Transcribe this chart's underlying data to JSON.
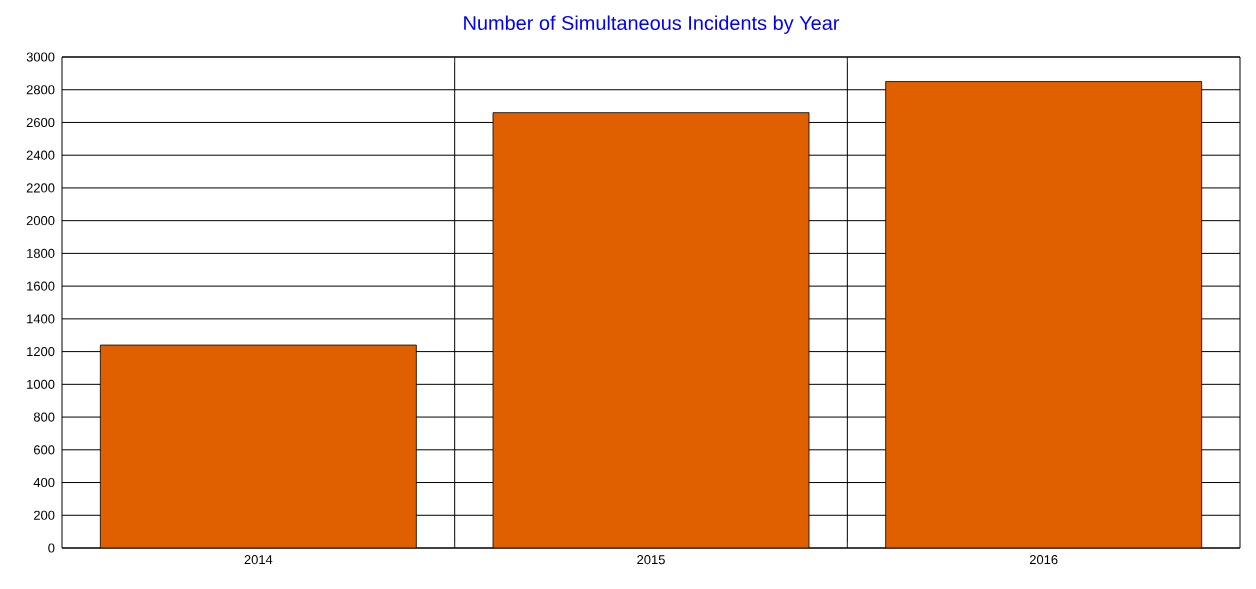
{
  "chart_data": {
    "type": "bar",
    "title": "Number of Simultaneous Incidents by Year",
    "categories": [
      "2014",
      "2015",
      "2016"
    ],
    "values": [
      1240,
      2660,
      2850
    ],
    "color": "#e06000",
    "ylim": [
      0,
      3000
    ],
    "yticks": [
      0,
      200,
      400,
      600,
      800,
      1000,
      1200,
      1400,
      1600,
      1800,
      2000,
      2200,
      2400,
      2600,
      2800,
      3000
    ],
    "grid": true
  }
}
